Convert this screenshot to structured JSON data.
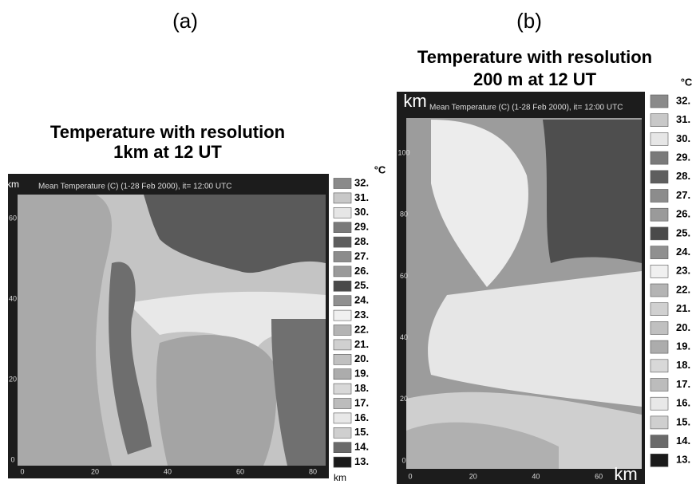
{
  "panels": [
    {
      "label": "(a)",
      "title_lines": [
        "Temperature with resolution",
        "1km at 12 UT"
      ],
      "plot_header": "Mean Temperature (C) (1-28 Feb 2000), it= 12:00 UTC",
      "y_unit": "km",
      "x_unit": "km",
      "legend_unit": "°C",
      "xticks": [
        "0",
        "20",
        "40",
        "60",
        "80"
      ],
      "yticks": [
        "0",
        "20",
        "40",
        "60"
      ],
      "legend": [
        {
          "label": "32.",
          "color": "#8a8a8a"
        },
        {
          "label": "31.",
          "color": "#c8c8c8"
        },
        {
          "label": "30.",
          "color": "#e6e6e6"
        },
        {
          "label": "29.",
          "color": "#7a7a7a"
        },
        {
          "label": "28.",
          "color": "#5e5e5e"
        },
        {
          "label": "27.",
          "color": "#8c8c8c"
        },
        {
          "label": "26.",
          "color": "#9a9a9a"
        },
        {
          "label": "25.",
          "color": "#4a4a4a"
        },
        {
          "label": "24.",
          "color": "#909090"
        },
        {
          "label": "23.",
          "color": "#f0f0f0"
        },
        {
          "label": "22.",
          "color": "#b4b4b4"
        },
        {
          "label": "21.",
          "color": "#d0d0d0"
        },
        {
          "label": "20.",
          "color": "#c0c0c0"
        },
        {
          "label": "19.",
          "color": "#acacac"
        },
        {
          "label": "18.",
          "color": "#d8d8d8"
        },
        {
          "label": "17.",
          "color": "#bcbcbc"
        },
        {
          "label": "16.",
          "color": "#e8e8e8"
        },
        {
          "label": "15.",
          "color": "#cfcfcf"
        },
        {
          "label": "14.",
          "color": "#6a6a6a"
        },
        {
          "label": "13.",
          "color": "#1a1a1a"
        }
      ]
    },
    {
      "label": "(b)",
      "title_lines": [
        "Temperature with resolution",
        "200 m at 12 UT"
      ],
      "plot_header": "Mean Temperature (C) (1-28 Feb 2000), it= 12:00 UTC",
      "y_unit": "km",
      "x_unit": "km",
      "legend_unit": "°C",
      "xticks": [
        "0",
        "20",
        "40",
        "60"
      ],
      "yticks": [
        "0",
        "20",
        "40",
        "60",
        "80",
        "100"
      ],
      "legend": [
        {
          "label": "32.",
          "color": "#8a8a8a"
        },
        {
          "label": "31.",
          "color": "#c8c8c8"
        },
        {
          "label": "30.",
          "color": "#e6e6e6"
        },
        {
          "label": "29.",
          "color": "#7a7a7a"
        },
        {
          "label": "28.",
          "color": "#5e5e5e"
        },
        {
          "label": "27.",
          "color": "#8c8c8c"
        },
        {
          "label": "26.",
          "color": "#9a9a9a"
        },
        {
          "label": "25.",
          "color": "#4a4a4a"
        },
        {
          "label": "24.",
          "color": "#909090"
        },
        {
          "label": "23.",
          "color": "#f0f0f0"
        },
        {
          "label": "22.",
          "color": "#b4b4b4"
        },
        {
          "label": "21.",
          "color": "#d0d0d0"
        },
        {
          "label": "20.",
          "color": "#c0c0c0"
        },
        {
          "label": "19.",
          "color": "#acacac"
        },
        {
          "label": "18.",
          "color": "#d8d8d8"
        },
        {
          "label": "17.",
          "color": "#bcbcbc"
        },
        {
          "label": "16.",
          "color": "#e8e8e8"
        },
        {
          "label": "15.",
          "color": "#cfcfcf"
        },
        {
          "label": "14.",
          "color": "#6a6a6a"
        },
        {
          "label": "13.",
          "color": "#1a1a1a"
        }
      ]
    }
  ]
}
